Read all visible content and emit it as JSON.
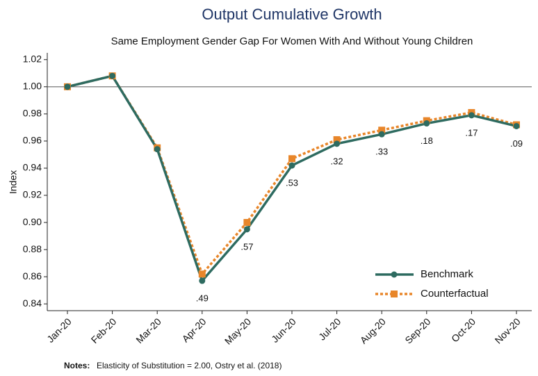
{
  "chart_data": {
    "type": "line",
    "title": "Output Cumulative Growth",
    "subtitle": "Same Employment Gender Gap For Women With And Without Young Children",
    "y_label": "Index",
    "note_label": "Notes:",
    "note_text": "Elasticity of Substitution = 2.00, Ostry et al. (2018)",
    "categories": [
      "Jan-20",
      "Feb-20",
      "Mar-20",
      "Apr-20",
      "May-20",
      "Jun-20",
      "Jul-20",
      "Aug-20",
      "Sep-20",
      "Oct-20",
      "Nov-20"
    ],
    "series": [
      {
        "name": "Benchmark",
        "color": "#2e6b60",
        "marker": "circle",
        "dash": false,
        "values": [
          1.0,
          1.008,
          0.954,
          0.857,
          0.895,
          0.942,
          0.958,
          0.965,
          0.973,
          0.979,
          0.971
        ]
      },
      {
        "name": "Counterfactual",
        "color": "#e8862a",
        "marker": "square",
        "dash": true,
        "values": [
          1.0,
          1.008,
          0.955,
          0.862,
          0.9,
          0.947,
          0.961,
          0.968,
          0.975,
          0.981,
          0.972
        ]
      }
    ],
    "point_labels": [
      null,
      null,
      null,
      ".49",
      ".57",
      ".53",
      ".32",
      ".33",
      ".18",
      ".17",
      ".09"
    ],
    "reference_line": 1,
    "ylim": [
      0.835,
      1.025
    ],
    "yticks": [
      1.02,
      {
        "value": 1.0,
        "label": "1.00"
      },
      0.98,
      0.96,
      0.94,
      0.92,
      {
        "value": 0.9,
        "label": "0.90"
      },
      0.88,
      0.86,
      0.84
    ],
    "legend": "lower right",
    "grid": false
  }
}
